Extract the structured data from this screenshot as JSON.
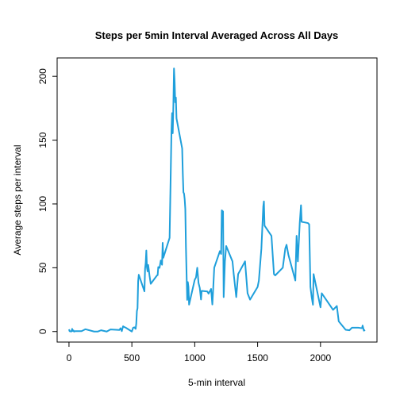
{
  "chart_data": {
    "type": "line",
    "title": "Steps per 5min Interval Averaged Across All Days",
    "x_label": "5-min interval",
    "y_label": "Average steps per interval",
    "xlim": [
      -94.2,
      2449.2
    ],
    "xticks": [
      0,
      500,
      1000,
      1500,
      2000
    ],
    "ylim": [
      -8.25,
      214.42
    ],
    "yticks": [
      0,
      50,
      100,
      150,
      200
    ],
    "x": [
      0,
      5,
      10,
      15,
      20,
      25,
      30,
      35,
      40,
      50,
      100,
      130,
      200,
      230,
      255,
      300,
      330,
      400,
      410,
      420,
      430,
      440,
      450,
      500,
      510,
      520,
      530,
      535,
      540,
      545,
      550,
      555,
      600,
      605,
      610,
      615,
      620,
      625,
      630,
      640,
      650,
      700,
      705,
      710,
      720,
      730,
      740,
      745,
      750,
      800,
      810,
      815,
      820,
      825,
      830,
      835,
      840,
      845,
      850,
      855,
      900,
      905,
      910,
      915,
      920,
      925,
      930,
      935,
      940,
      945,
      950,
      955,
      1000,
      1010,
      1020,
      1030,
      1040,
      1050,
      1055,
      1100,
      1110,
      1130,
      1140,
      1145,
      1155,
      1200,
      1210,
      1215,
      1225,
      1230,
      1240,
      1250,
      1300,
      1310,
      1330,
      1345,
      1400,
      1420,
      1440,
      1500,
      1510,
      1530,
      1545,
      1550,
      1555,
      1610,
      1630,
      1640,
      1700,
      1720,
      1730,
      1745,
      1800,
      1810,
      1820,
      1830,
      1835,
      1845,
      1850,
      1900,
      1910,
      1920,
      1930,
      1940,
      1945,
      2000,
      2010,
      2100,
      2130,
      2135,
      2145,
      2200,
      2230,
      2250,
      2300,
      2330,
      2335,
      2345,
      2355
    ],
    "series": [
      {
        "name": "steps",
        "color": "#1f9fdb",
        "values": [
          1.7,
          0.3,
          0.1,
          0.2,
          0.1,
          2.1,
          0.5,
          0.9,
          0,
          0.3,
          0.3,
          1.8,
          0,
          0,
          1.0,
          0,
          1.6,
          1.2,
          2.6,
          0.3,
          4.1,
          3.5,
          3.1,
          0,
          3.0,
          3.3,
          2.1,
          6.1,
          16.0,
          18.3,
          39.5,
          44.5,
          31.5,
          49.3,
          53.8,
          63.5,
          50.0,
          47.1,
          52.2,
          44.1,
          37.4,
          44.0,
          44.2,
          50.5,
          49.9,
          55.7,
          52.3,
          69.5,
          57.8,
          73.4,
          129.4,
          157.5,
          171.2,
          155.4,
          177.3,
          206.2,
          195.9,
          179.6,
          183.4,
          167.0,
          143.5,
          124.0,
          109.1,
          108.1,
          103.7,
          96.0,
          66.2,
          45.2,
          24.8,
          38.8,
          35.0,
          21.1,
          40.6,
          42.4,
          50.0,
          38.1,
          34.1,
          25.1,
          31.9,
          31.4,
          29.7,
          33.4,
          21.2,
          30.0,
          50.0,
          63.0,
          60.8,
          95.0,
          94.1,
          27.0,
          55.0,
          67.0,
          55.0,
          45.0,
          27.0,
          45.0,
          55.0,
          30.0,
          25.0,
          35.0,
          40.0,
          65.0,
          98.0,
          102.0,
          83.0,
          75.0,
          45.0,
          44.0,
          50.0,
          65.0,
          68.0,
          60.0,
          40.0,
          75.0,
          55.0,
          75.0,
          85.0,
          99.0,
          86.0,
          85.0,
          84.0,
          35.0,
          27.0,
          21.0,
          45.0,
          19.0,
          30.0,
          17.0,
          20.0,
          16.0,
          8.0,
          1.4,
          1.0,
          3.0,
          3.0,
          2.6,
          4.7,
          0.7,
          1.1
        ]
      }
    ]
  }
}
